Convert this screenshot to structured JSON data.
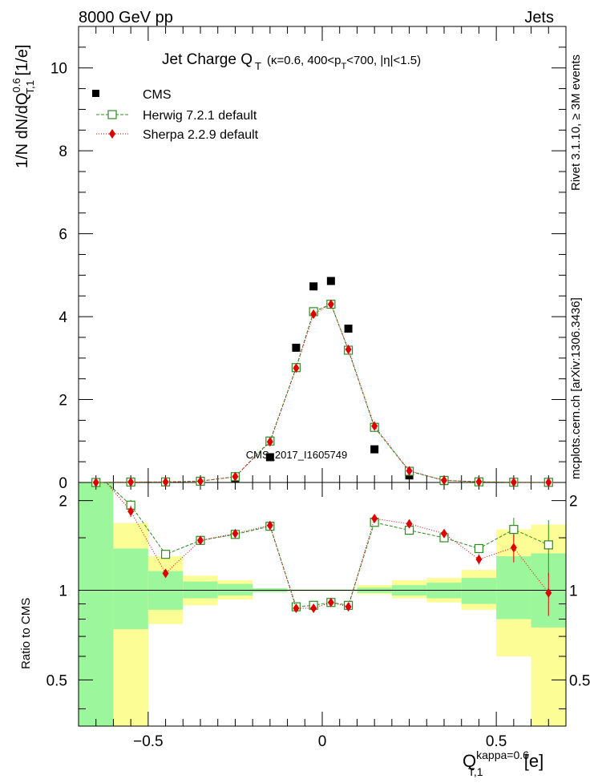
{
  "header": {
    "left": "8000 GeV pp",
    "right": "Jets"
  },
  "side_labels": {
    "rivet": "Rivet 3.1.10, ≥ 3M events",
    "mcplots": "mcplots.cern.ch [arXiv:1306.3436]"
  },
  "chart_data": [
    {
      "type": "scatter",
      "title": {
        "main": "Jet Charge Q",
        "sub": "T",
        "cond_a": "(κ=0.6, 400<p",
        "cond_sub": "T",
        "cond_b": "<700, |η|<1.5)"
      },
      "ylabel": {
        "pre": "1/N dN/dQ",
        "sup": "0.6",
        "sub": "T,1",
        "post": " [1/e]"
      },
      "watermark": "CMS_2017_I1605749",
      "xlim": [
        -0.7,
        0.7
      ],
      "ylim": [
        0,
        11
      ],
      "yticks": [
        {
          "v": 0,
          "label": "0"
        },
        {
          "v": 2,
          "label": "2"
        },
        {
          "v": 4,
          "label": "4"
        },
        {
          "v": 6,
          "label": "6"
        },
        {
          "v": 8,
          "label": "8"
        },
        {
          "v": 10,
          "label": "10"
        }
      ],
      "x": [
        -0.65,
        -0.55,
        -0.45,
        -0.35,
        -0.25,
        -0.15,
        -0.075,
        -0.025,
        0.025,
        0.075,
        0.15,
        0.25,
        0.35,
        0.45,
        0.55,
        0.65
      ],
      "legend": {
        "position": "top-left",
        "entries": [
          {
            "label": "CMS",
            "key": "cms"
          },
          {
            "label": "Herwig 7.2.1 default",
            "key": "herwig"
          },
          {
            "label": "Sherpa 2.2.9 default",
            "key": "sherpa"
          }
        ]
      },
      "series": [
        {
          "key": "cms",
          "name": "CMS",
          "color": "#000000",
          "marker": "square-filled",
          "values": [
            0.0,
            0.005,
            0.01,
            0.02,
            0.09,
            0.61,
            3.25,
            4.73,
            4.86,
            3.71,
            0.8,
            0.17,
            0.035,
            0.012,
            0.004,
            0.002
          ]
        },
        {
          "key": "herwig",
          "name": "Herwig 7.2.1 default",
          "color": "#2e8b22",
          "marker": "square-open",
          "values": [
            0.0,
            0.01,
            0.013,
            0.03,
            0.14,
            1.0,
            2.77,
            4.12,
            4.3,
            3.19,
            1.33,
            0.27,
            0.05,
            0.015,
            0.006,
            0.003
          ]
        },
        {
          "key": "sherpa",
          "name": "Sherpa 2.2.9 default",
          "color": "#dd0000",
          "marker": "diamond-filled",
          "values": [
            0.0,
            0.009,
            0.011,
            0.03,
            0.14,
            0.98,
            2.76,
            4.06,
            4.3,
            3.21,
            1.36,
            0.28,
            0.05,
            0.015,
            0.005,
            0.002
          ]
        }
      ]
    },
    {
      "type": "scatter",
      "ylabel": "Ratio to CMS",
      "xlabel": {
        "main": "Q",
        "sup": "kappa=0.6",
        "sub": "T,1",
        "post": " [e]"
      },
      "xlim": [
        -0.7,
        0.7
      ],
      "ylim": [
        0.35,
        2.3
      ],
      "log_y": true,
      "xticks": [
        {
          "v": -0.5,
          "label": "−0.5"
        },
        {
          "v": 0,
          "label": "0"
        },
        {
          "v": 0.5,
          "label": "0.5"
        }
      ],
      "yticks": [
        {
          "v": 0.5,
          "label": "0.5"
        },
        {
          "v": 1,
          "label": "1"
        },
        {
          "v": 2,
          "label": "2"
        }
      ],
      "bands": {
        "edges": [
          -0.7,
          -0.6,
          -0.5,
          -0.4,
          -0.3,
          -0.2,
          -0.1,
          -0.05,
          0.0,
          0.05,
          0.1,
          0.2,
          0.3,
          0.4,
          0.5,
          0.6,
          0.7
        ],
        "stat_color": "#9cf79c",
        "total_color": "#fdfd96",
        "stat": [
          [
            0.35,
            2.3
          ],
          [
            0.74,
            1.38
          ],
          [
            0.86,
            1.16
          ],
          [
            0.94,
            1.07
          ],
          [
            0.96,
            1.05
          ],
          [
            0.985,
            1.015
          ],
          [
            0.995,
            1.005
          ],
          [
            0.995,
            1.005
          ],
          [
            0.995,
            1.005
          ],
          [
            0.995,
            1.005
          ],
          [
            0.98,
            1.02
          ],
          [
            0.96,
            1.04
          ],
          [
            0.94,
            1.06
          ],
          [
            0.9,
            1.1
          ],
          [
            0.8,
            1.3
          ],
          [
            0.75,
            1.33
          ]
        ],
        "total": [
          [
            0.35,
            2.3
          ],
          [
            0.35,
            1.68
          ],
          [
            0.77,
            1.3
          ],
          [
            0.89,
            1.12
          ],
          [
            0.93,
            1.08
          ],
          [
            0.985,
            1.015
          ],
          [
            0.995,
            1.005
          ],
          [
            0.995,
            1.005
          ],
          [
            0.995,
            1.005
          ],
          [
            0.995,
            1.005
          ],
          [
            0.97,
            1.04
          ],
          [
            0.94,
            1.08
          ],
          [
            0.91,
            1.1
          ],
          [
            0.86,
            1.17
          ],
          [
            0.6,
            1.6
          ],
          [
            0.35,
            1.66
          ]
        ]
      },
      "series": [
        {
          "key": "herwig",
          "name": "Herwig 7.2.1 default",
          "color": "#2e8b22",
          "marker": "square-open",
          "values": [
            null,
            1.93,
            1.32,
            1.47,
            1.54,
            1.64,
            0.88,
            0.89,
            0.91,
            0.89,
            1.69,
            1.59,
            1.5,
            1.38,
            1.6,
            1.42
          ],
          "errors": [
            0,
            0.08,
            0.03,
            0.02,
            0.02,
            0.02,
            0.01,
            0.01,
            0.01,
            0.01,
            0.02,
            0.02,
            0.03,
            0.05,
            0.15,
            0.3
          ]
        },
        {
          "key": "sherpa",
          "name": "Sherpa 2.2.9 default",
          "color": "#dd0000",
          "marker": "diamond-filled",
          "values": [
            null,
            1.84,
            1.14,
            1.47,
            1.55,
            1.65,
            0.87,
            0.87,
            0.91,
            0.88,
            1.74,
            1.67,
            1.55,
            1.27,
            1.39,
            0.98
          ],
          "errors": [
            0,
            0.08,
            0.03,
            0.02,
            0.02,
            0.02,
            0.01,
            0.01,
            0.01,
            0.01,
            0.02,
            0.02,
            0.03,
            0.05,
            0.15,
            0.16
          ]
        }
      ]
    }
  ]
}
